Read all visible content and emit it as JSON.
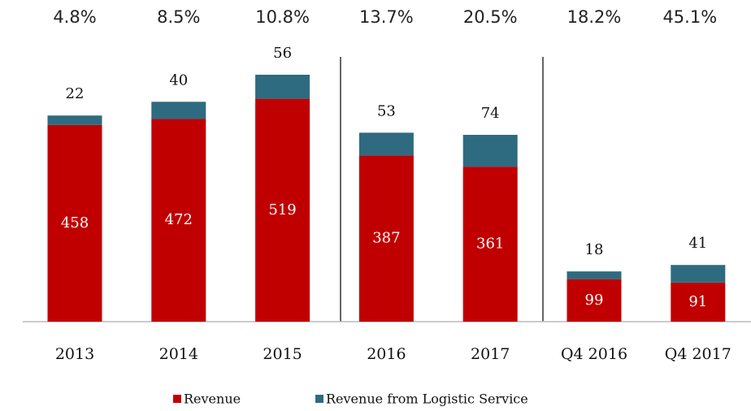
{
  "chart_data": {
    "type": "stacked_bar",
    "annotations": [
      "4.8%",
      "8.5%",
      "10.8%",
      "13.7%",
      "20.5%",
      "18.2%",
      "45.1%"
    ],
    "categories": [
      "2013",
      "2014",
      "2015",
      "2016",
      "2017",
      "Q4 2016",
      "Q4 2017"
    ],
    "series": [
      {
        "name": "Revenue",
        "color": "#c00000",
        "values": [
          458,
          472,
          519,
          387,
          361,
          99,
          91
        ]
      },
      {
        "name": "Revenue from Logistic Service",
        "color": "#2e6b80",
        "values": [
          22,
          40,
          56,
          53,
          74,
          18,
          41
        ]
      }
    ]
  }
}
